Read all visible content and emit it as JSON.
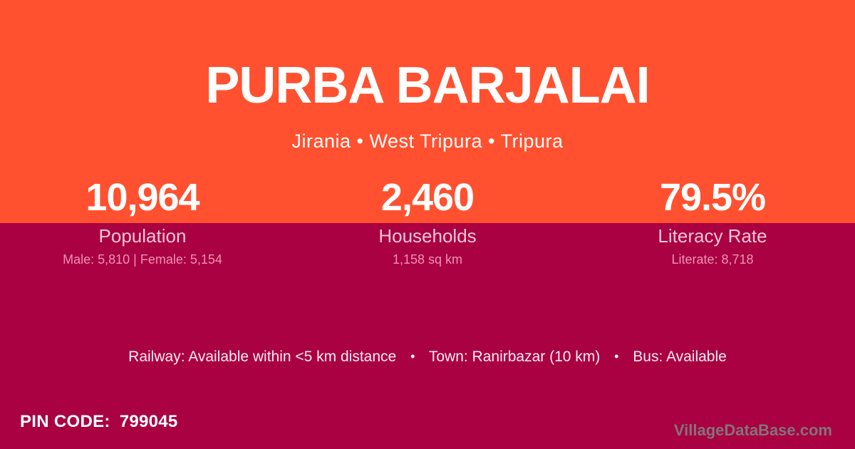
{
  "card": {
    "title": "PURBA BARJALAI",
    "subtitle": "Jirania • West Tripura • Tripura"
  },
  "stats": [
    {
      "value": "10,964",
      "label": "Population",
      "detail": "Male: 5,810 | Female: 5,154"
    },
    {
      "value": "2,460",
      "label": "Households",
      "detail": "1,158 sq km"
    },
    {
      "value": "79.5%",
      "label": "Literacy Rate",
      "detail": "Literate: 8,718"
    }
  ],
  "amenities": {
    "railway": "Railway: Available within <5 km distance",
    "town": "Town: Ranirbazar (10 km)",
    "bus": "Bus: Available",
    "separator": "•"
  },
  "footer": {
    "pin_label": "PIN CODE:",
    "pin_value": "799045",
    "watermark": "VillageDataBase.com"
  },
  "colors": {
    "top_band": "#FF512F",
    "bottom_band": "#A90142",
    "title_text": "#FFFFFF",
    "stat_label_text": "#F4C6D6",
    "stat_detail_text": "#F091B4",
    "watermark_text": "#84737C"
  }
}
